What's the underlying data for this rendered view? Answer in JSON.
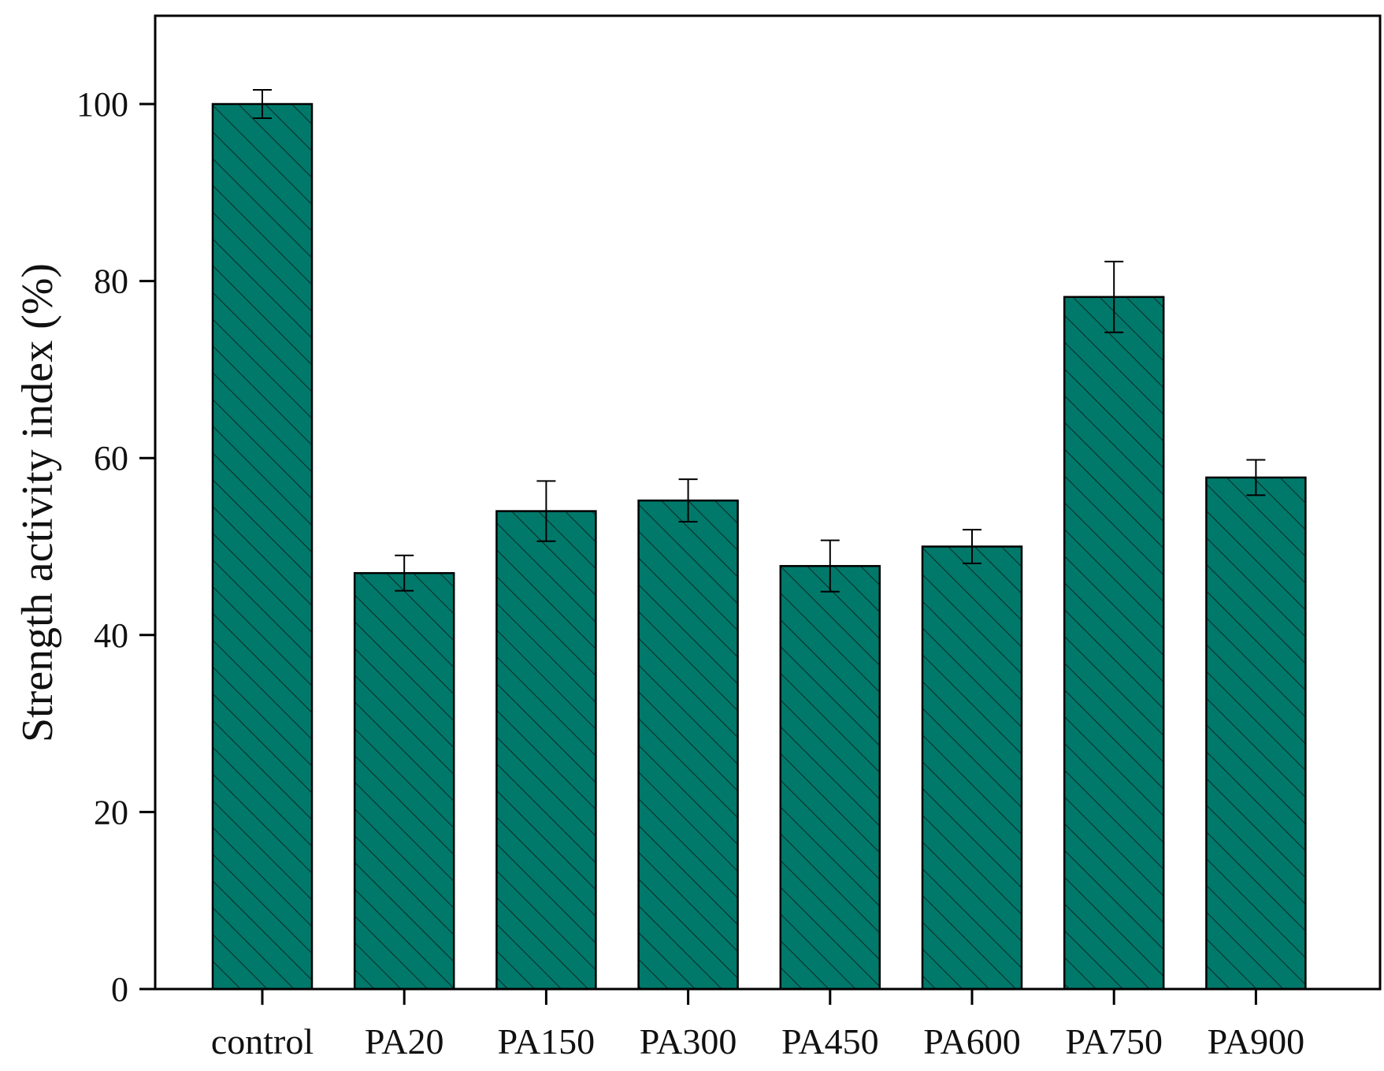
{
  "chart_data": {
    "type": "bar",
    "title": "",
    "xlabel": "",
    "ylabel": "Strength activity index (%)",
    "ylim": [
      0,
      110
    ],
    "yticks": [
      0,
      20,
      40,
      60,
      80,
      100
    ],
    "grid": false,
    "legend": "none",
    "categories": [
      "control",
      "PA20",
      "PA150",
      "PA300",
      "PA450",
      "PA600",
      "PA750",
      "PA900"
    ],
    "values": [
      100,
      47,
      54,
      55.2,
      47.8,
      50,
      78.2,
      57.8
    ],
    "errors": [
      1.6,
      2,
      3.4,
      2.4,
      2.9,
      1.9,
      4,
      2
    ],
    "colors": {
      "bar_fill": "#00796b",
      "bar_edge": "#000000",
      "hatch": "#0a2e28",
      "axis": "#000000"
    }
  }
}
